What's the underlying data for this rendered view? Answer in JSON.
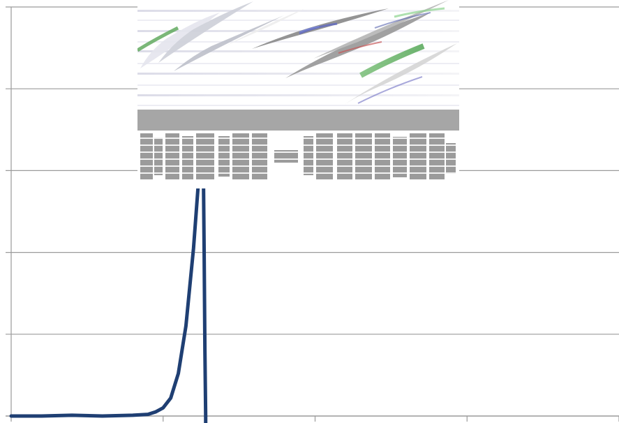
{
  "chart_data": {
    "type": "line",
    "title": "",
    "xlabel": "",
    "ylabel": "",
    "xlim": [
      0,
      4
    ],
    "ylim": [
      0,
      5
    ],
    "x_ticks": [
      0,
      1,
      2,
      3,
      4
    ],
    "y_gridlines": [
      0,
      1,
      2,
      3,
      4,
      5
    ],
    "grid": true,
    "legend": "none",
    "series": [
      {
        "color": "#1f3f73",
        "points": [
          [
            0.0,
            0.0
          ],
          [
            0.2,
            0.0
          ],
          [
            0.4,
            0.01
          ],
          [
            0.6,
            0.0
          ],
          [
            0.8,
            0.01
          ],
          [
            0.9,
            0.02
          ],
          [
            0.95,
            0.05
          ],
          [
            1.0,
            0.1
          ],
          [
            1.05,
            0.22
          ],
          [
            1.1,
            0.52
          ],
          [
            1.15,
            1.1
          ],
          [
            1.2,
            2.05
          ],
          [
            1.25,
            3.3
          ],
          [
            1.265,
            3.0
          ],
          [
            1.27,
            2.0
          ],
          [
            1.275,
            0.8
          ],
          [
            1.28,
            0.0
          ]
        ]
      }
    ],
    "colors": {
      "grid": "#9a9a9a",
      "line": "#1f3f73"
    }
  }
}
